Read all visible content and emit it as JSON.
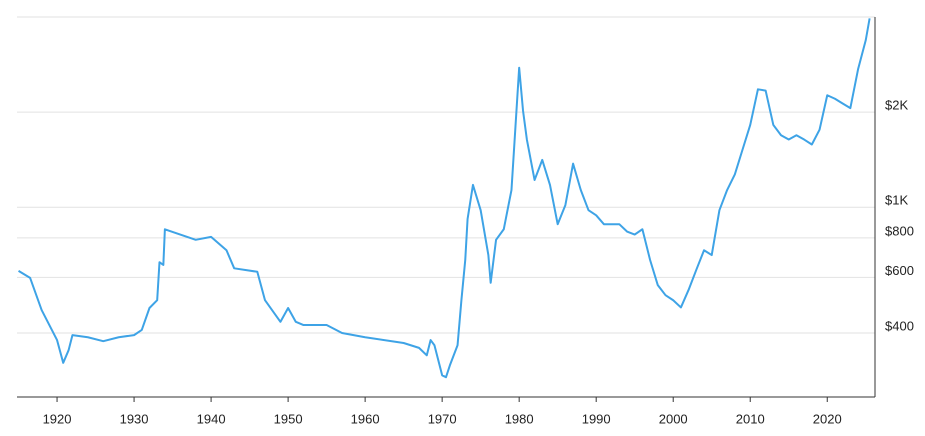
{
  "chart_data": {
    "type": "line",
    "x": [
      1915,
      1916.5,
      1918,
      1920,
      1920.8,
      1921.5,
      1922,
      1924,
      1926,
      1928,
      1930,
      1931,
      1932,
      1933,
      1933.3,
      1933.8,
      1934,
      1936,
      1938,
      1940,
      1942,
      1943,
      1946,
      1947,
      1949,
      1950,
      1951,
      1952,
      1955,
      1957,
      1960,
      1965,
      1967,
      1968,
      1968.5,
      1969,
      1970,
      1970.5,
      1971,
      1972,
      1972.5,
      1973,
      1973.3,
      1974,
      1975,
      1976,
      1976.3,
      1977,
      1978,
      1979,
      1980,
      1980.5,
      1981,
      1982,
      1983,
      1984,
      1985,
      1986,
      1987,
      1988,
      1989,
      1990,
      1991,
      1993,
      1994,
      1995,
      1996,
      1997,
      1998,
      1999,
      2000,
      2001,
      2002,
      2003,
      2004,
      2005,
      2006,
      2007,
      2008,
      2009,
      2010,
      2011,
      2012,
      2013,
      2014,
      2015,
      2016,
      2017,
      2018,
      2019,
      2020,
      2021,
      2022,
      2023,
      2024,
      2025,
      2025.5
    ],
    "series": [
      {
        "color": "#3ea3e6",
        "values": [
          629,
          598,
          473,
          380,
          322,
          353,
          394,
          388,
          377,
          388,
          394,
          409,
          480,
          508,
          670,
          657,
          852,
          820,
          789,
          806,
          731,
          641,
          625,
          508,
          434,
          480,
          434,
          424,
          424,
          400,
          388,
          372,
          359,
          340,
          380,
          366,
          294,
          290,
          316,
          366,
          508,
          681,
          918,
          1177,
          979,
          706,
          577,
          789,
          852,
          1134,
          2764,
          2023,
          1638,
          1220,
          1412,
          1177,
          884,
          1016,
          1374,
          1134,
          979,
          943,
          884,
          884,
          838,
          820,
          852,
          681,
          567,
          527,
          508,
          482,
          548,
          634,
          731,
          706,
          979,
          1134,
          1270,
          1522,
          1822,
          2362,
          2340,
          1822,
          1690,
          1638,
          1690,
          1638,
          1580,
          1760,
          2262,
          2205,
          2130,
          2060,
          2733,
          3380,
          3960
        ]
      }
    ],
    "xlim": [
      1914.8,
      2026.2
    ],
    "xticks": [
      1920,
      1930,
      1940,
      1950,
      1960,
      1970,
      1980,
      1990,
      2000,
      2010,
      2020
    ],
    "ylim": [
      251,
      4000
    ],
    "log_scale": true,
    "yticks": [
      {
        "value": 400,
        "label": "$400"
      },
      {
        "value": 600,
        "label": "$600"
      },
      {
        "value": 800,
        "label": "$800"
      },
      {
        "value": 1000,
        "label": "$1K"
      },
      {
        "value": 2000,
        "label": "$2K"
      }
    ],
    "grid": true
  }
}
